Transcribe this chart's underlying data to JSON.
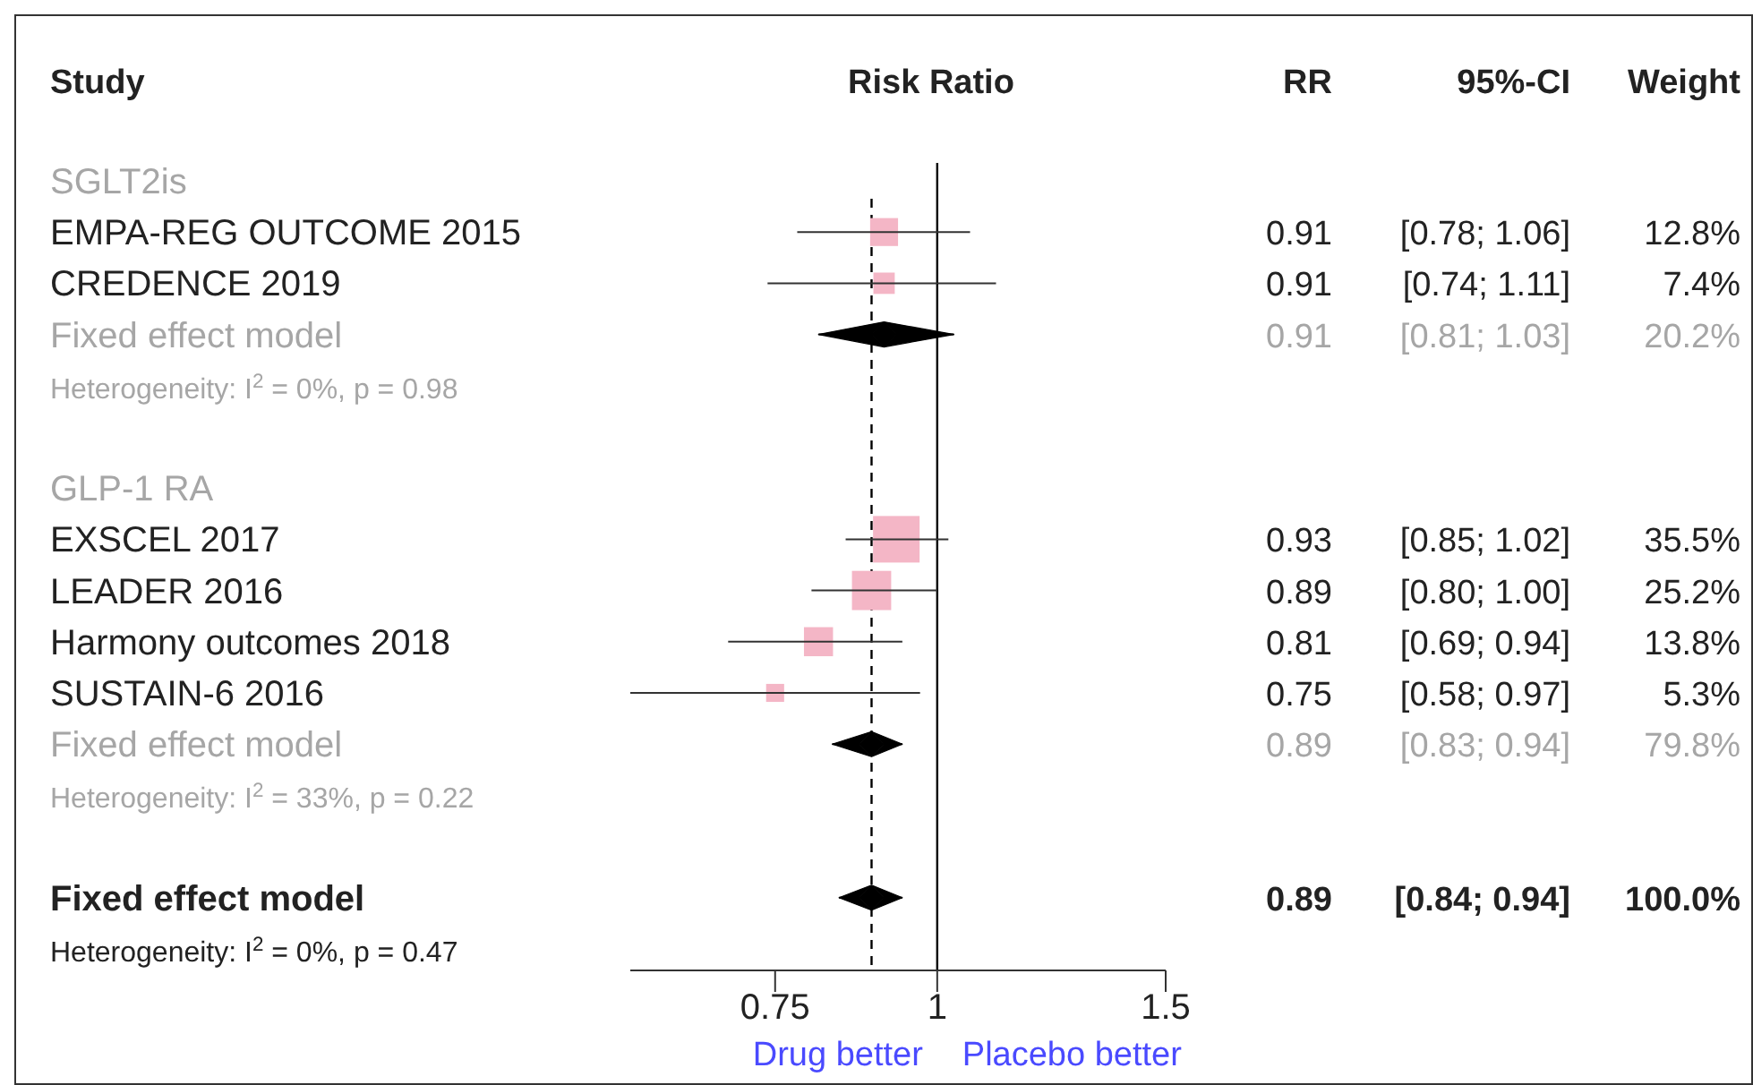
{
  "chart_data": {
    "type": "scatter",
    "orientation": "horizontal",
    "title": "Risk Ratio",
    "ylabel": "Study",
    "log": "x",
    "xlim": [
      0.58,
      1.5
    ],
    "xticks": [
      0.75,
      1,
      1.5
    ],
    "categories": [
      "SGLT2is",
      "EMPA-REG OUTCOME 2015",
      "CREDENCE 2019",
      "Fixed effect model",
      "Heterogeneity: I$^{2}$ = 0%, p = 0.98",
      null,
      "GLP-1 RA",
      "EXSCEL 2017",
      "LEADER 2016",
      "Harmony outcomes 2018",
      "SUSTAIN-6 2016",
      "Fixed effect model",
      "Heterogeneity: I$^{2}$ = 33%, p = 0.22",
      null,
      "Fixed effect model",
      "Heterogeneity: I$^{2}$ = 0%, p = 0.47"
    ],
    "series": [
      {
        "type": "scatter",
        "marker": "square",
        "color": "#f4b6c6",
        "values": [
          null,
          0.91,
          0.91,
          null,
          null,
          null,
          null,
          0.93,
          0.89,
          0.81,
          0.75,
          null,
          null,
          null,
          null,
          null
        ],
        "errors": [
          null,
          [
            0.78,
            1.06
          ],
          [
            0.74,
            1.11
          ],
          null,
          null,
          null,
          null,
          [
            0.85,
            1.02
          ],
          [
            0.8,
            1.0
          ],
          [
            0.69,
            0.94
          ],
          [
            0.58,
            0.97
          ],
          null,
          null,
          null,
          null,
          null
        ],
        "sizes": [
          null,
          0.36,
          0.21,
          null,
          null,
          null,
          null,
          1,
          0.71,
          0.39,
          0.15,
          null,
          null,
          null,
          null,
          null
        ],
        "value_labels": [
          null,
          "0.91 [0.78; 1.06] 12.8%",
          "0.91 [0.74; 1.11] 7.4%",
          null,
          null,
          null,
          null,
          "0.93 [0.85; 1.02] 35.5%",
          "0.89 [0.80; 1.00] 25.2%",
          "0.81 [0.69; 0.94] 13.8%",
          "0.75 [0.58; 0.97] 5.3%",
          null,
          null,
          null,
          null,
          null
        ]
      },
      {
        "type": "scatter",
        "marker": "diamond",
        "color": "#000000",
        "values": [
          null,
          null,
          null,
          0.91,
          null,
          null,
          null,
          null,
          null,
          null,
          null,
          0.89,
          null,
          null,
          0.89,
          null
        ],
        "errors": [
          null,
          null,
          null,
          [
            0.81,
            1.03
          ],
          null,
          null,
          null,
          null,
          null,
          null,
          null,
          [
            0.83,
            0.94
          ],
          null,
          null,
          [
            0.84,
            0.94
          ],
          null
        ],
        "value_labels": [
          null,
          null,
          null,
          "0.91 [0.81; 1.03] 20.2%",
          null,
          null,
          null,
          null,
          null,
          null,
          null,
          "0.89 [0.83; 0.94] 79.8%",
          null,
          null,
          "0.89 [0.84; 0.94] 100.0%",
          null
        ]
      }
    ],
    "ref_lines": [
      {
        "axis": "x",
        "value": 0.89,
        "line_style": "dashed",
        "color": "#000000"
      },
      {
        "axis": "x",
        "value": 1,
        "line_style": "solid",
        "color": "#000000"
      }
    ],
    "annotations": [
      "RR",
      "95%-CI",
      "Weight",
      "Drug better",
      "Placebo better"
    ]
  }
}
